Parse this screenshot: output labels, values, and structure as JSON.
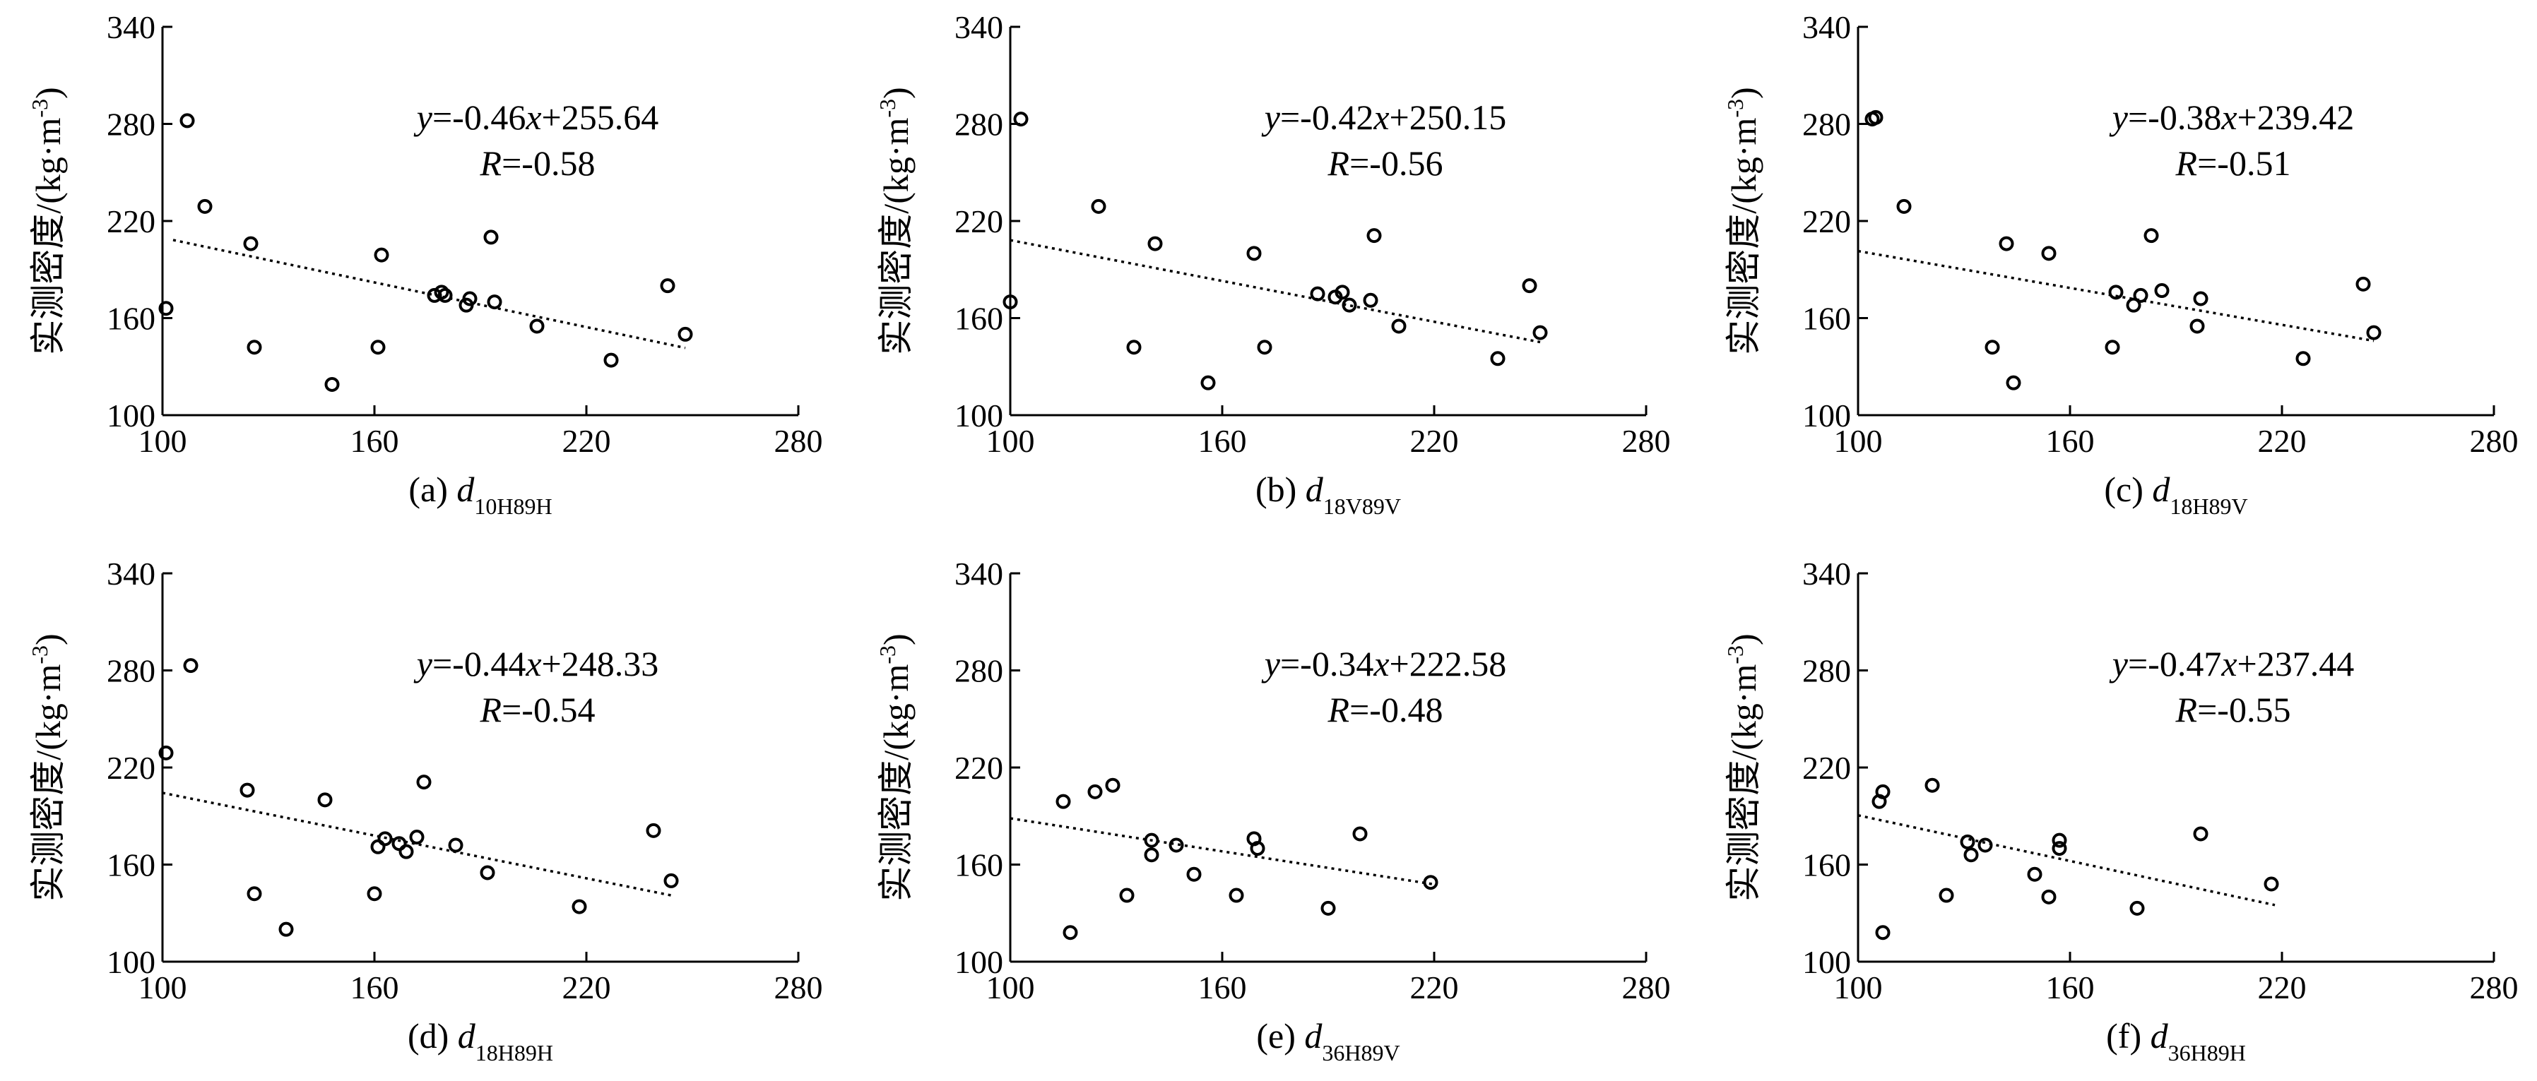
{
  "chart_data": [
    {
      "type": "scatter",
      "panel_label": "(a) ",
      "xlabel_var": "d",
      "xlabel_sub": "10H89H",
      "ylabel": "实测密度/(kg·m",
      "ylabel_sup": "-3",
      "ylabel_close": ")",
      "xlim": [
        100,
        280
      ],
      "ylim": [
        100,
        340
      ],
      "xticks": [
        "100",
        "160",
        "220",
        "280"
      ],
      "yticks": [
        "100",
        "160",
        "220",
        "280",
        "340"
      ],
      "equation": {
        "y_var": "y",
        "y_rest": "=-0.46",
        "x_var": "x",
        "x_rest": "+255.64",
        "r_var": "R",
        "r_rest": "=-0.58"
      },
      "fit": {
        "slope": -0.46,
        "intercept": 255.64,
        "x_range": [
          103,
          248
        ]
      },
      "points": [
        {
          "x": 101,
          "y": 166
        },
        {
          "x": 107,
          "y": 282
        },
        {
          "x": 112,
          "y": 229
        },
        {
          "x": 125,
          "y": 206
        },
        {
          "x": 126,
          "y": 142
        },
        {
          "x": 148,
          "y": 119
        },
        {
          "x": 161,
          "y": 142
        },
        {
          "x": 162,
          "y": 199
        },
        {
          "x": 177,
          "y": 174
        },
        {
          "x": 179,
          "y": 176
        },
        {
          "x": 180,
          "y": 174
        },
        {
          "x": 186,
          "y": 168
        },
        {
          "x": 187,
          "y": 172
        },
        {
          "x": 193,
          "y": 210
        },
        {
          "x": 194,
          "y": 170
        },
        {
          "x": 206,
          "y": 155
        },
        {
          "x": 227,
          "y": 134
        },
        {
          "x": 243,
          "y": 180
        },
        {
          "x": 248,
          "y": 150
        }
      ]
    },
    {
      "type": "scatter",
      "panel_label": "(b) ",
      "xlabel_var": "d",
      "xlabel_sub": "18V89V",
      "ylabel": "实测密度/(kg·m",
      "ylabel_sup": "-3",
      "ylabel_close": ")",
      "xlim": [
        100,
        280
      ],
      "ylim": [
        100,
        340
      ],
      "xticks": [
        "100",
        "160",
        "220",
        "280"
      ],
      "yticks": [
        "100",
        "160",
        "220",
        "280",
        "340"
      ],
      "equation": {
        "y_var": "y",
        "y_rest": "=-0.42",
        "x_var": "x",
        "x_rest": "+250.15",
        "r_var": "R",
        "r_rest": "=-0.56"
      },
      "fit": {
        "slope": -0.42,
        "intercept": 250.15,
        "x_range": [
          100,
          250
        ]
      },
      "points": [
        {
          "x": 100,
          "y": 170
        },
        {
          "x": 103,
          "y": 283
        },
        {
          "x": 125,
          "y": 229
        },
        {
          "x": 135,
          "y": 142
        },
        {
          "x": 141,
          "y": 206
        },
        {
          "x": 156,
          "y": 120
        },
        {
          "x": 169,
          "y": 200
        },
        {
          "x": 172,
          "y": 142
        },
        {
          "x": 187,
          "y": 175
        },
        {
          "x": 192,
          "y": 173
        },
        {
          "x": 194,
          "y": 176
        },
        {
          "x": 196,
          "y": 168
        },
        {
          "x": 202,
          "y": 171
        },
        {
          "x": 203,
          "y": 211
        },
        {
          "x": 210,
          "y": 155
        },
        {
          "x": 238,
          "y": 135
        },
        {
          "x": 247,
          "y": 180
        },
        {
          "x": 250,
          "y": 151
        }
      ]
    },
    {
      "type": "scatter",
      "panel_label": "(c) ",
      "xlabel_var": "d",
      "xlabel_sub": "18H89V",
      "ylabel": "实测密度/(kg·m",
      "ylabel_sup": "-3",
      "ylabel_close": ")",
      "xlim": [
        100,
        280
      ],
      "ylim": [
        100,
        340
      ],
      "xticks": [
        "100",
        "160",
        "220",
        "280"
      ],
      "yticks": [
        "100",
        "160",
        "220",
        "280",
        "340"
      ],
      "equation": {
        "y_var": "y",
        "y_rest": "=-0.38",
        "x_var": "x",
        "x_rest": "+239.42",
        "r_var": "R",
        "r_rest": "=-0.51"
      },
      "fit": {
        "slope": -0.38,
        "intercept": 239.42,
        "x_range": [
          100,
          246
        ]
      },
      "points": [
        {
          "x": 104,
          "y": 283
        },
        {
          "x": 105,
          "y": 284
        },
        {
          "x": 113,
          "y": 229
        },
        {
          "x": 138,
          "y": 142
        },
        {
          "x": 142,
          "y": 206
        },
        {
          "x": 144,
          "y": 120
        },
        {
          "x": 154,
          "y": 200
        },
        {
          "x": 172,
          "y": 142
        },
        {
          "x": 173,
          "y": 176
        },
        {
          "x": 178,
          "y": 168
        },
        {
          "x": 180,
          "y": 174
        },
        {
          "x": 183,
          "y": 211
        },
        {
          "x": 186,
          "y": 177
        },
        {
          "x": 196,
          "y": 155
        },
        {
          "x": 197,
          "y": 172
        },
        {
          "x": 226,
          "y": 135
        },
        {
          "x": 243,
          "y": 181
        },
        {
          "x": 246,
          "y": 151
        }
      ]
    },
    {
      "type": "scatter",
      "panel_label": "(d) ",
      "xlabel_var": "d",
      "xlabel_sub": "18H89H",
      "ylabel": "实测密度/(kg·m",
      "ylabel_sup": "-3",
      "ylabel_close": ")",
      "xlim": [
        100,
        280
      ],
      "ylim": [
        100,
        340
      ],
      "xticks": [
        "100",
        "160",
        "220",
        "280"
      ],
      "yticks": [
        "100",
        "160",
        "220",
        "280",
        "340"
      ],
      "equation": {
        "y_var": "y",
        "y_rest": "=-0.44",
        "x_var": "x",
        "x_rest": "+248.33",
        "r_var": "R",
        "r_rest": "=-0.54"
      },
      "fit": {
        "slope": -0.44,
        "intercept": 248.33,
        "x_range": [
          100,
          245
        ]
      },
      "points": [
        {
          "x": 101,
          "y": 229
        },
        {
          "x": 108,
          "y": 283
        },
        {
          "x": 124,
          "y": 206
        },
        {
          "x": 126,
          "y": 142
        },
        {
          "x": 135,
          "y": 120
        },
        {
          "x": 146,
          "y": 200
        },
        {
          "x": 160,
          "y": 142
        },
        {
          "x": 161,
          "y": 171
        },
        {
          "x": 163,
          "y": 176
        },
        {
          "x": 167,
          "y": 173
        },
        {
          "x": 169,
          "y": 168
        },
        {
          "x": 172,
          "y": 177
        },
        {
          "x": 174,
          "y": 211
        },
        {
          "x": 183,
          "y": 172
        },
        {
          "x": 192,
          "y": 155
        },
        {
          "x": 218,
          "y": 134
        },
        {
          "x": 239,
          "y": 181
        },
        {
          "x": 244,
          "y": 150
        }
      ]
    },
    {
      "type": "scatter",
      "panel_label": "(e) ",
      "xlabel_var": "d",
      "xlabel_sub": "36H89V",
      "ylabel": "实测密度/(kg·m",
      "ylabel_sup": "-3",
      "ylabel_close": ")",
      "xlim": [
        100,
        280
      ],
      "ylim": [
        100,
        340
      ],
      "xticks": [
        "100",
        "160",
        "220",
        "280"
      ],
      "yticks": [
        "100",
        "160",
        "220",
        "280",
        "340"
      ],
      "equation": {
        "y_var": "y",
        "y_rest": "=-0.34",
        "x_var": "x",
        "x_rest": "+222.58",
        "r_var": "R",
        "r_rest": "=-0.48"
      },
      "fit": {
        "slope": -0.34,
        "intercept": 222.58,
        "x_range": [
          100,
          220
        ]
      },
      "points": [
        {
          "x": 115,
          "y": 199
        },
        {
          "x": 117,
          "y": 118
        },
        {
          "x": 124,
          "y": 205
        },
        {
          "x": 129,
          "y": 209
        },
        {
          "x": 133,
          "y": 141
        },
        {
          "x": 140,
          "y": 175
        },
        {
          "x": 140,
          "y": 166
        },
        {
          "x": 147,
          "y": 172
        },
        {
          "x": 152,
          "y": 154
        },
        {
          "x": 164,
          "y": 141
        },
        {
          "x": 169,
          "y": 176
        },
        {
          "x": 170,
          "y": 170
        },
        {
          "x": 190,
          "y": 133
        },
        {
          "x": 199,
          "y": 179
        },
        {
          "x": 219,
          "y": 149
        }
      ]
    },
    {
      "type": "scatter",
      "panel_label": "(f) ",
      "xlabel_var": "d",
      "xlabel_sub": "36H89H",
      "ylabel": "实测密度/(kg·m",
      "ylabel_sup": "-3",
      "ylabel_close": ")",
      "xlim": [
        100,
        280
      ],
      "ylim": [
        100,
        340
      ],
      "xticks": [
        "100",
        "160",
        "220",
        "280"
      ],
      "yticks": [
        "100",
        "160",
        "220",
        "280",
        "340"
      ],
      "equation": {
        "y_var": "y",
        "y_rest": "=-0.47",
        "x_var": "x",
        "x_rest": "+237.44",
        "r_var": "R",
        "r_rest": "=-0.55"
      },
      "fit": {
        "slope": -0.47,
        "intercept": 237.44,
        "x_range": [
          100,
          218
        ]
      },
      "points": [
        {
          "x": 106,
          "y": 199
        },
        {
          "x": 107,
          "y": 205
        },
        {
          "x": 107,
          "y": 118
        },
        {
          "x": 121,
          "y": 209
        },
        {
          "x": 125,
          "y": 141
        },
        {
          "x": 131,
          "y": 174
        },
        {
          "x": 132,
          "y": 166
        },
        {
          "x": 136,
          "y": 172
        },
        {
          "x": 150,
          "y": 154
        },
        {
          "x": 154,
          "y": 140
        },
        {
          "x": 157,
          "y": 175
        },
        {
          "x": 157,
          "y": 170
        },
        {
          "x": 179,
          "y": 133
        },
        {
          "x": 197,
          "y": 179
        },
        {
          "x": 217,
          "y": 148
        }
      ]
    }
  ]
}
